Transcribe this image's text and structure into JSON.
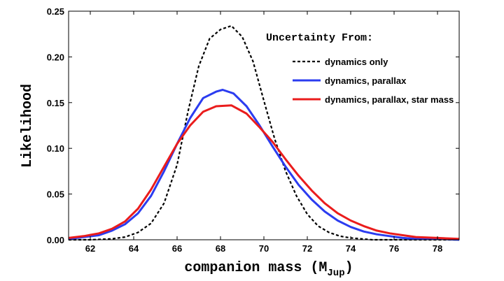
{
  "chart_data": {
    "type": "line",
    "xlabel": "companion mass (M",
    "xlabel_sub": "Jup",
    "xlabel_end": ")",
    "ylabel": "Likelihood",
    "xlim": [
      61,
      79
    ],
    "ylim": [
      0,
      0.25
    ],
    "xticks": [
      62,
      64,
      66,
      68,
      70,
      72,
      74,
      76,
      78
    ],
    "yticks": [
      "0.00",
      "0.05",
      "0.10",
      "0.15",
      "0.20",
      "0.25"
    ],
    "legend_title": "Uncertainty From:",
    "legend_position": "top-right",
    "grid": false,
    "series": [
      {
        "name": "dynamics only",
        "color": "#000000",
        "dash": "dashed",
        "x": [
          61,
          62,
          63,
          63.6,
          64.2,
          64.8,
          65.4,
          66.0,
          66.5,
          67.0,
          67.5,
          68.0,
          68.5,
          69.0,
          69.5,
          70.0,
          70.5,
          71.0,
          71.5,
          72.0,
          72.5,
          73.0,
          73.5,
          74.0,
          74.5,
          75,
          76,
          77,
          79
        ],
        "y": [
          0.0,
          0.0,
          0.001,
          0.003,
          0.008,
          0.018,
          0.04,
          0.082,
          0.14,
          0.19,
          0.22,
          0.23,
          0.234,
          0.222,
          0.195,
          0.152,
          0.11,
          0.075,
          0.048,
          0.028,
          0.015,
          0.008,
          0.004,
          0.002,
          0.001,
          0.0,
          0.0,
          0.0,
          0.0
        ]
      },
      {
        "name": "dynamics, parallax",
        "color": "#2b3cf0",
        "dash": "solid",
        "x": [
          61,
          61.7,
          62.4,
          63.0,
          63.6,
          64.2,
          64.8,
          65.4,
          66.0,
          66.6,
          67.2,
          67.8,
          68.1,
          68.6,
          69.2,
          69.8,
          70.4,
          71.0,
          71.6,
          72.2,
          72.8,
          73.4,
          74.0,
          74.6,
          75.2,
          75.8,
          76.4,
          77.0,
          78.0,
          79.0
        ],
        "y": [
          0.001,
          0.003,
          0.005,
          0.01,
          0.017,
          0.029,
          0.048,
          0.075,
          0.105,
          0.133,
          0.155,
          0.162,
          0.164,
          0.16,
          0.146,
          0.125,
          0.102,
          0.08,
          0.06,
          0.044,
          0.031,
          0.021,
          0.014,
          0.009,
          0.006,
          0.004,
          0.002,
          0.001,
          0.001,
          0.0
        ]
      },
      {
        "name": "dynamics, parallax, star mass",
        "color": "#ea1c1c",
        "dash": "solid",
        "x": [
          61,
          61.7,
          62.4,
          63.0,
          63.6,
          64.2,
          64.8,
          65.4,
          66.0,
          66.6,
          67.2,
          67.8,
          68.5,
          69.2,
          69.8,
          70.4,
          71.0,
          71.6,
          72.2,
          72.8,
          73.4,
          74.0,
          74.6,
          75.2,
          75.8,
          76.4,
          77.0,
          78.0,
          79.0
        ],
        "y": [
          0.002,
          0.004,
          0.007,
          0.012,
          0.02,
          0.034,
          0.055,
          0.08,
          0.105,
          0.125,
          0.14,
          0.146,
          0.147,
          0.138,
          0.123,
          0.107,
          0.088,
          0.07,
          0.054,
          0.04,
          0.029,
          0.021,
          0.015,
          0.01,
          0.007,
          0.005,
          0.003,
          0.002,
          0.001
        ]
      }
    ]
  }
}
